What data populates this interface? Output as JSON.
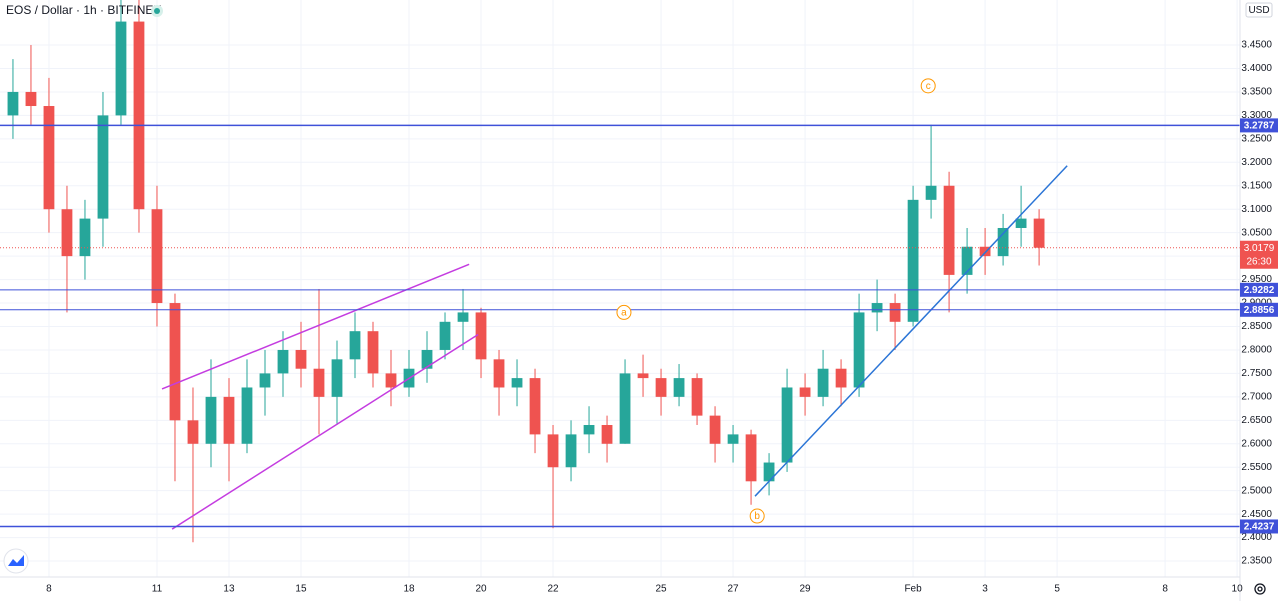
{
  "chart_data": {
    "type": "candlestick",
    "title": "EOS / Dollar · 1h · BITFINEX",
    "currency": "USD",
    "xlim": [
      6.64,
      41.08
    ],
    "xticks": [
      8,
      11,
      13,
      15,
      18,
      20,
      22,
      25,
      27,
      29,
      {
        "value": 32,
        "label": "Feb"
      },
      {
        "value": 34,
        "label": "3"
      },
      {
        "value": 36,
        "label": "5"
      },
      {
        "value": 39,
        "label": "8"
      },
      {
        "value": 41,
        "label": "10"
      }
    ],
    "ylim": [
      2.316,
      3.546
    ],
    "yticks": [
      {
        "value": 2.35,
        "label": "2.3500"
      },
      {
        "value": 2.4,
        "label": "2.4000"
      },
      {
        "value": 2.45,
        "label": "2.4500"
      },
      {
        "value": 2.5,
        "label": "2.5000"
      },
      {
        "value": 2.55,
        "label": "2.5500"
      },
      {
        "value": 2.6,
        "label": "2.6000"
      },
      {
        "value": 2.65,
        "label": "2.6500"
      },
      {
        "value": 2.7,
        "label": "2.7000"
      },
      {
        "value": 2.75,
        "label": "2.7500"
      },
      {
        "value": 2.8,
        "label": "2.8000"
      },
      {
        "value": 2.85,
        "label": "2.8500"
      },
      {
        "value": 2.9,
        "label": "2.9000"
      },
      {
        "value": 2.95,
        "label": "2.9500"
      },
      {
        "value": 3.0,
        "label": "3.0000"
      },
      {
        "value": 3.05,
        "label": "3.0500"
      },
      {
        "value": 3.1,
        "label": "3.1000"
      },
      {
        "value": 3.15,
        "label": "3.1500"
      },
      {
        "value": 3.2,
        "label": "3.2000"
      },
      {
        "value": 3.25,
        "label": "3.2500"
      },
      {
        "value": 3.3,
        "label": "3.3000"
      },
      {
        "value": 3.35,
        "label": "3.3500"
      },
      {
        "value": 3.4,
        "label": "3.4000"
      },
      {
        "value": 3.45,
        "label": "3.4500"
      }
    ],
    "grid": true,
    "up_color": "#26a69a",
    "down_color": "#ef5350",
    "x": [
      7.0,
      7.5,
      8.0,
      8.5,
      9.0,
      9.5,
      10.0,
      10.5,
      11.0,
      11.5,
      12.0,
      12.5,
      13.0,
      13.5,
      14.0,
      14.5,
      15.0,
      15.5,
      16.0,
      16.5,
      17.0,
      17.5,
      18.0,
      18.5,
      19.0,
      19.5,
      20.0,
      20.5,
      21.0,
      21.5,
      22.0,
      22.5,
      23.0,
      23.5,
      24.0,
      24.5,
      25.0,
      25.5,
      26.0,
      26.5,
      27.0,
      27.5,
      28.0,
      28.5,
      29.0,
      29.5,
      30.0,
      30.5,
      31.0,
      31.5,
      32.0,
      32.5,
      33.0,
      33.5,
      34.0,
      34.5,
      35.0,
      35.5
    ],
    "open": [
      3.3,
      3.35,
      3.32,
      3.1,
      3.0,
      3.08,
      3.3,
      3.5,
      3.1,
      2.9,
      2.65,
      2.6,
      2.7,
      2.6,
      2.72,
      2.75,
      2.8,
      2.76,
      2.7,
      2.78,
      2.84,
      2.75,
      2.72,
      2.76,
      2.8,
      2.86,
      2.88,
      2.78,
      2.72,
      2.74,
      2.62,
      2.55,
      2.62,
      2.64,
      2.6,
      2.75,
      2.74,
      2.7,
      2.74,
      2.66,
      2.6,
      2.62,
      2.52,
      2.56,
      2.72,
      2.7,
      2.76,
      2.72,
      2.88,
      2.9,
      2.86,
      3.12,
      3.15,
      2.96,
      3.02,
      3.0,
      3.06,
      3.08
    ],
    "high": [
      3.42,
      3.45,
      3.38,
      3.15,
      3.12,
      3.35,
      3.55,
      3.55,
      3.15,
      2.92,
      2.72,
      2.78,
      2.74,
      2.78,
      2.8,
      2.84,
      2.86,
      2.93,
      2.82,
      2.88,
      2.86,
      2.8,
      2.8,
      2.84,
      2.88,
      2.93,
      2.89,
      2.8,
      2.78,
      2.76,
      2.64,
      2.65,
      2.68,
      2.66,
      2.78,
      2.79,
      2.76,
      2.77,
      2.75,
      2.68,
      2.64,
      2.63,
      2.58,
      2.76,
      2.75,
      2.8,
      2.78,
      2.92,
      2.95,
      2.92,
      3.15,
      3.28,
      3.18,
      3.06,
      3.06,
      3.09,
      3.15,
      3.1
    ],
    "low": [
      3.25,
      3.28,
      3.05,
      2.88,
      2.95,
      3.02,
      3.28,
      3.05,
      2.85,
      2.52,
      2.39,
      2.55,
      2.52,
      2.58,
      2.66,
      2.7,
      2.72,
      2.62,
      2.64,
      2.74,
      2.72,
      2.68,
      2.7,
      2.73,
      2.78,
      2.8,
      2.74,
      2.66,
      2.68,
      2.58,
      2.42,
      2.52,
      2.58,
      2.56,
      2.6,
      2.7,
      2.66,
      2.68,
      2.64,
      2.56,
      2.56,
      2.47,
      2.49,
      2.54,
      2.66,
      2.68,
      2.68,
      2.7,
      2.84,
      2.8,
      2.85,
      3.08,
      2.88,
      2.92,
      2.96,
      2.98,
      3.02,
      2.98
    ],
    "close": [
      3.35,
      3.32,
      3.1,
      3.0,
      3.08,
      3.3,
      3.5,
      3.1,
      2.9,
      2.65,
      2.6,
      2.7,
      2.6,
      2.72,
      2.75,
      2.8,
      2.76,
      2.7,
      2.78,
      2.84,
      2.75,
      2.72,
      2.76,
      2.8,
      2.86,
      2.88,
      2.78,
      2.72,
      2.74,
      2.62,
      2.55,
      2.62,
      2.64,
      2.6,
      2.75,
      2.74,
      2.7,
      2.74,
      2.66,
      2.6,
      2.62,
      2.52,
      2.56,
      2.72,
      2.7,
      2.76,
      2.72,
      2.88,
      2.9,
      2.86,
      3.12,
      3.15,
      2.96,
      3.02,
      3.0,
      3.06,
      3.08,
      3.0179
    ],
    "levels": [
      3.2787,
      2.9282,
      2.8856,
      2.4237
    ],
    "level_color": "#3f51d9",
    "last_price": 3.0179,
    "countdown": "26:30",
    "trendlines": [
      {
        "color": "#c43ce0",
        "points": [
          [
            11.14,
            2.7168
          ],
          [
            19.67,
            2.9826
          ]
        ]
      },
      {
        "color": "#c43ce0",
        "points": [
          [
            11.42,
            2.4181
          ],
          [
            19.92,
            2.833
          ]
        ]
      },
      {
        "color": "#2b75d6",
        "points": [
          [
            27.61,
            2.4883
          ],
          [
            36.28,
            3.1926
          ]
        ]
      }
    ],
    "wave_labels": [
      {
        "text": "a",
        "x": 23.97,
        "y": 2.88
      },
      {
        "text": "b",
        "x": 27.67,
        "y": 2.446
      },
      {
        "text": "c",
        "x": 32.42,
        "y": 3.363
      }
    ]
  }
}
